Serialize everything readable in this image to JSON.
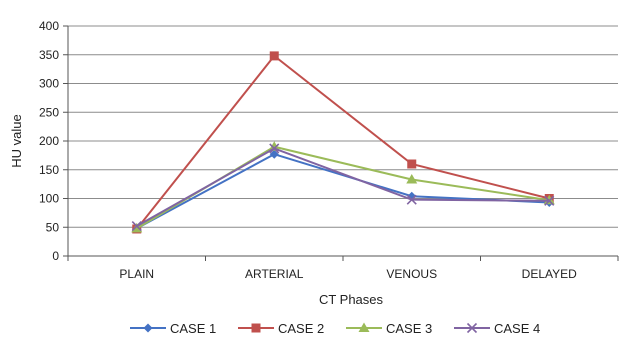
{
  "chart_data": {
    "type": "line",
    "title": "",
    "xlabel": "CT Phases",
    "ylabel": "HU value",
    "categories": [
      "PLAIN",
      "ARTERIAL",
      "VENOUS",
      "DELAYED"
    ],
    "ylim": [
      0,
      400
    ],
    "yticks": [
      0,
      50,
      100,
      150,
      200,
      250,
      300,
      350,
      400
    ],
    "grid": "horizontal",
    "legend": "bottom",
    "series": [
      {
        "name": "CASE 1",
        "values": [
          48,
          177,
          104,
          93
        ],
        "color": "#4472C4",
        "marker": "diamond"
      },
      {
        "name": "CASE 2",
        "values": [
          47,
          348,
          160,
          100
        ],
        "color": "#C0504D",
        "marker": "square"
      },
      {
        "name": "CASE 3",
        "values": [
          48,
          190,
          133,
          97
        ],
        "color": "#9BBB59",
        "marker": "triangle"
      },
      {
        "name": "CASE 4",
        "values": [
          52,
          187,
          98,
          96
        ],
        "color": "#8064A2",
        "marker": "x"
      }
    ]
  }
}
